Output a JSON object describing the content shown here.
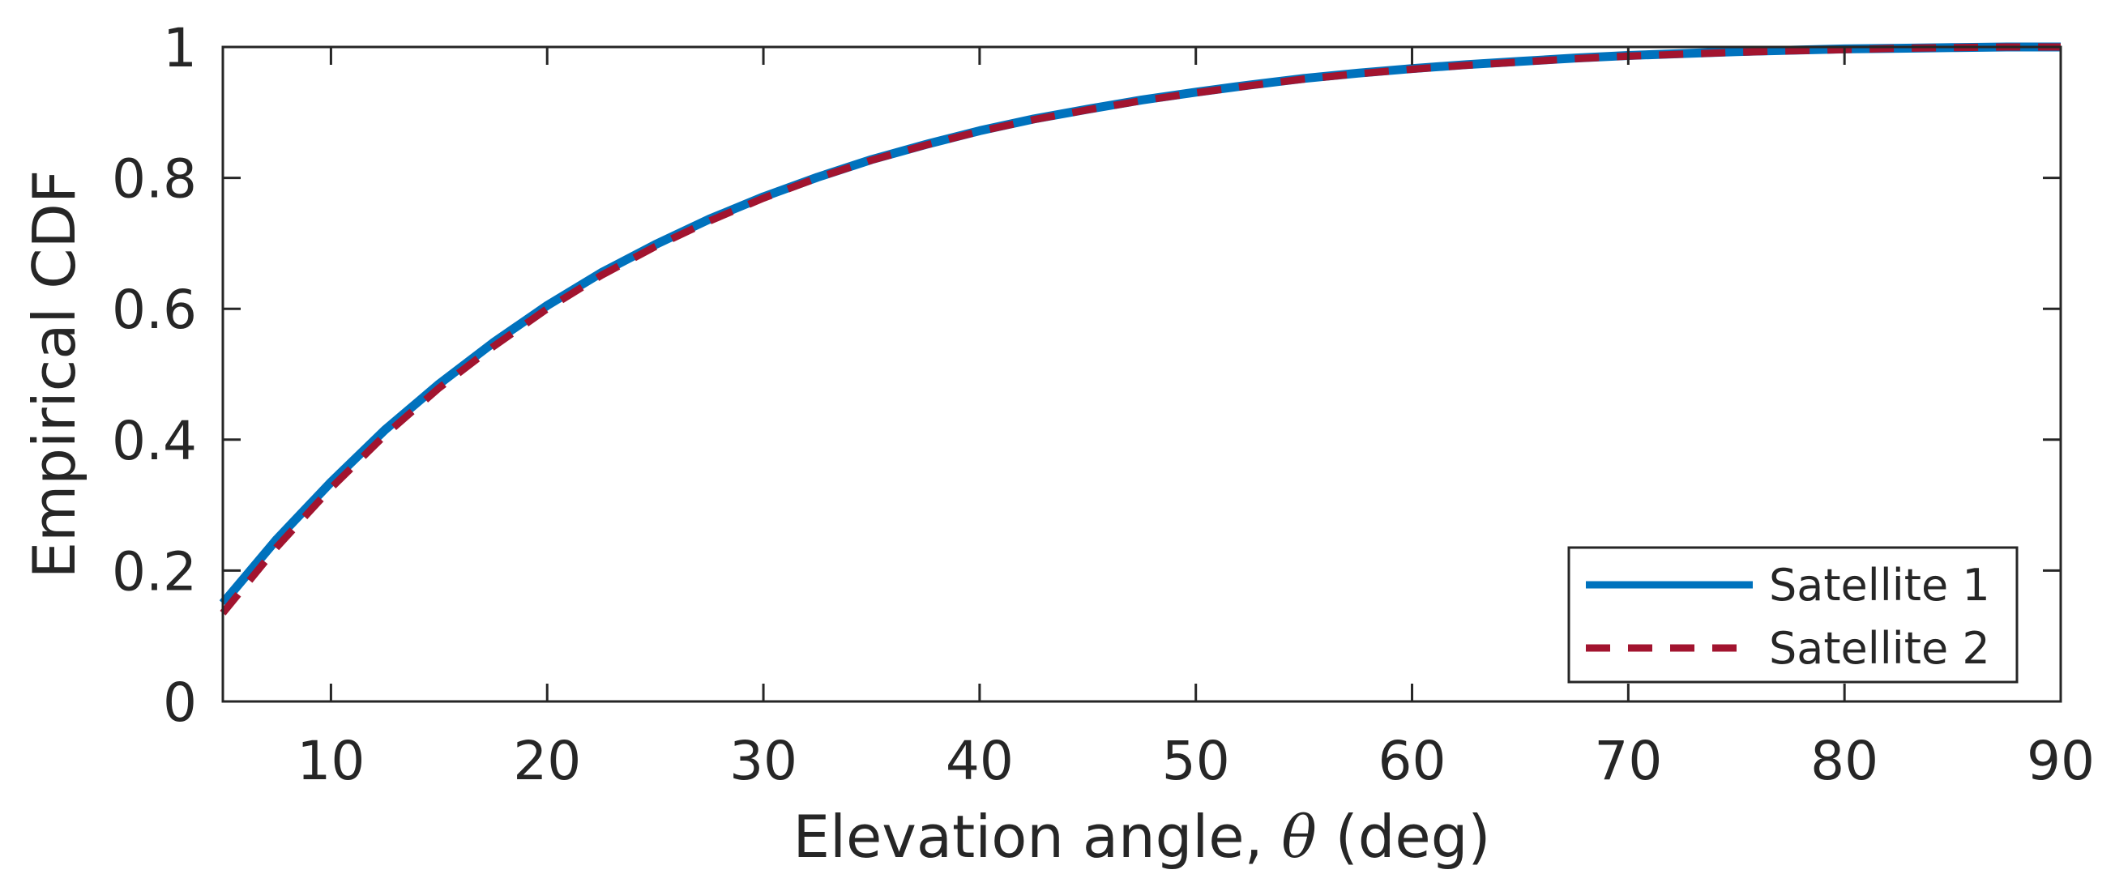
{
  "chart_data": {
    "type": "line",
    "title": "",
    "xlabel_prefix": "Elevation angle, ",
    "xlabel_symbol": "θ",
    "xlabel_suffix": " (deg)",
    "ylabel": "Empirical CDF",
    "xlim": [
      5,
      90
    ],
    "ylim": [
      0,
      1
    ],
    "x_ticks": [
      10,
      20,
      30,
      40,
      50,
      60,
      70,
      80,
      90
    ],
    "x_tick_labels": [
      "10",
      "20",
      "30",
      "40",
      "50",
      "60",
      "70",
      "80",
      "90"
    ],
    "y_ticks": [
      0,
      0.2,
      0.4,
      0.6,
      0.8,
      1
    ],
    "y_tick_labels": [
      "0",
      "0.2",
      "0.4",
      "0.6",
      "0.8",
      "1"
    ],
    "grid": false,
    "legend_position": "bottom-right",
    "x": [
      5,
      7.5,
      10,
      12.5,
      15,
      17.5,
      20,
      22.5,
      25,
      27.5,
      30,
      32.5,
      35,
      37.5,
      40,
      42.5,
      45,
      47.5,
      50,
      52.5,
      55,
      57.5,
      60,
      62.5,
      65,
      67.5,
      70,
      72.5,
      75,
      77.5,
      80,
      82.5,
      85,
      87.5,
      90
    ],
    "series": [
      {
        "name": "Satellite 1",
        "color": "#0072BD",
        "style": "solid",
        "values": [
          0.15,
          0.248,
          0.335,
          0.415,
          0.485,
          0.548,
          0.605,
          0.655,
          0.698,
          0.737,
          0.771,
          0.801,
          0.828,
          0.851,
          0.872,
          0.89,
          0.905,
          0.919,
          0.931,
          0.942,
          0.952,
          0.96,
          0.967,
          0.973,
          0.978,
          0.983,
          0.987,
          0.99,
          0.993,
          0.995,
          0.997,
          0.998,
          0.999,
          1.0,
          1.0
        ]
      },
      {
        "name": "Satellite 2",
        "color": "#A2142F",
        "style": "dashed",
        "values": [
          0.135,
          0.236,
          0.326,
          0.407,
          0.479,
          0.542,
          0.6,
          0.651,
          0.695,
          0.734,
          0.769,
          0.8,
          0.827,
          0.85,
          0.871,
          0.889,
          0.904,
          0.918,
          0.93,
          0.941,
          0.951,
          0.959,
          0.966,
          0.972,
          0.977,
          0.982,
          0.986,
          0.989,
          0.992,
          0.994,
          0.996,
          0.998,
          0.999,
          1.0,
          1.0
        ]
      }
    ]
  }
}
